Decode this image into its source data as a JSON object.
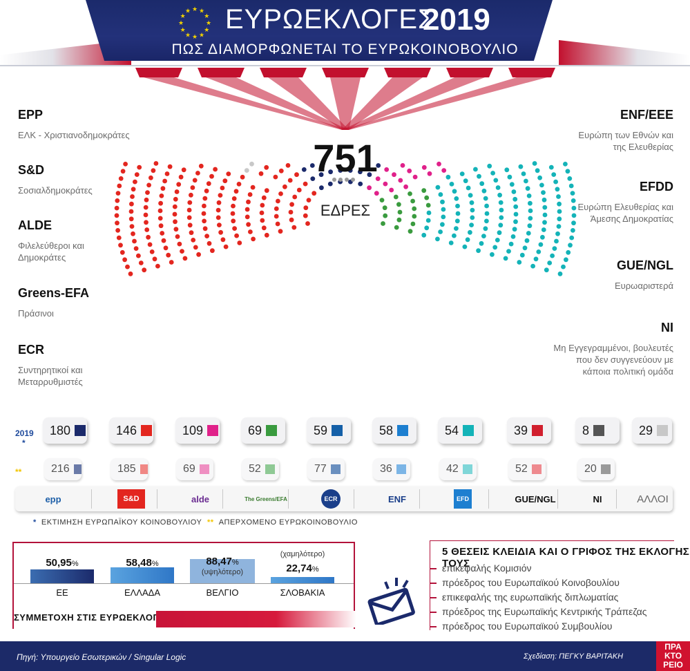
{
  "header": {
    "title": "ΕΥΡΩΕΚΛΟΓΕΣ",
    "year": "2019",
    "subtitle": "ΠΩΣ ΔΙΑΜΟΡΦΩΝΕΤΑΙ ΤΟ ΕΥΡΩΚΟΙΝΟΒΟΥΛΙΟ"
  },
  "chamber": {
    "total": "751",
    "seats_word": "ΕΔΡΕΣ"
  },
  "groups_left": [
    {
      "abbr": "EPP",
      "desc": "ΕΛΚ - Χριστιανοδημοκράτες"
    },
    {
      "abbr": "S&D",
      "desc": "Σοσιαλδημοκράτες"
    },
    {
      "abbr": "ALDE",
      "desc": "Φιλελεύθεροι και Δημοκράτες"
    },
    {
      "abbr": "Greens-EFA",
      "desc": "Πράσινοι"
    },
    {
      "abbr": "ECR",
      "desc": "Συντηρητικοί και Μεταρρυθμιστές"
    }
  ],
  "groups_right": [
    {
      "abbr": "ENF/EEE",
      "desc": "Ευρώπη των Εθνών και της Ελευθερίας"
    },
    {
      "abbr": "EFDD",
      "desc": "Ευρώπη Ελευθερίας και Άμεσης Δημοκρατίας"
    },
    {
      "abbr": "GUE/NGL",
      "desc": "Ευρωαριστερά"
    },
    {
      "abbr": "NI",
      "desc": "Μη Εγγεγραμμένοι, βουλευτές που δεν συγγενεύουν με κάποια πολιτική ομάδα"
    }
  ],
  "counts": {
    "row_2019_label": "2019",
    "row_2019_mark": "*",
    "row_prev_mark": "**",
    "current": [
      {
        "value": "180",
        "color": "#1b2a6b"
      },
      {
        "value": "146",
        "color": "#e3261f"
      },
      {
        "value": "109",
        "color": "#e0218a"
      },
      {
        "value": "69",
        "color": "#3a9b3f"
      },
      {
        "value": "59",
        "color": "#1560a8"
      },
      {
        "value": "58",
        "color": "#1d7fd0"
      },
      {
        "value": "54",
        "color": "#14b3b8"
      },
      {
        "value": "39",
        "color": "#d11f2e"
      },
      {
        "value": "8",
        "color": "#555555"
      },
      {
        "value": "29",
        "color": "#c8c8c8"
      }
    ],
    "previous": [
      {
        "value": "216",
        "color": "#6a7aa8"
      },
      {
        "value": "185",
        "color": "#f08784"
      },
      {
        "value": "69",
        "color": "#ef8fc2"
      },
      {
        "value": "52",
        "color": "#8fc995"
      },
      {
        "value": "77",
        "color": "#6a8fbf"
      },
      {
        "value": "36",
        "color": "#7cb5e6"
      },
      {
        "value": "42",
        "color": "#7fd6d8"
      },
      {
        "value": "52",
        "color": "#ee8a8f"
      },
      {
        "value": "20",
        "color": "#9a9a9a"
      }
    ],
    "logos": [
      {
        "text": "epp",
        "color": "#1d5fa8"
      },
      {
        "text": "S&D",
        "color": "#ffffff"
      },
      {
        "text": "alde",
        "color": "#6a2c91"
      },
      {
        "text": "The Greens/EFA",
        "color": "#3a7b2f"
      },
      {
        "text": "ECR",
        "color": "#1b3f8a"
      },
      {
        "text": "ENF",
        "color": "#1b3f8a"
      },
      {
        "text": "EFD",
        "color": "#1d7fd0"
      },
      {
        "text": "GUE/NGL",
        "color": "#111111"
      },
      {
        "text": "NI",
        "color": "#111111"
      },
      {
        "text": "ΑΛΛΟΙ",
        "color": "#666666"
      }
    ],
    "legend_current": "ΕΚΤΙΜΗΣΗ ΕΥΡΩΠΑΪΚΟΥ ΚΟΙΝΟΒΟΥΛΙΟΥ",
    "legend_previous": "ΑΠΕΡΧΟΜΕΝΟ ΕΥΡΩΚΟΙΝΟΒΟΥΛΙΟ"
  },
  "turnout": {
    "title": "ΣΥΜΜΕΤΟΧΗ ΣΤΙΣ ΕΥΡΩΕΚΛΟΓΕΣ",
    "items": [
      {
        "name": "ΕΕ",
        "value": 50.95,
        "label": "50,95",
        "note": ""
      },
      {
        "name": "ΕΛΛΑΔΑ",
        "value": 58.48,
        "label": "58,48",
        "note": ""
      },
      {
        "name": "ΒΕΛΓΙΟ",
        "value": 88.47,
        "label": "88,47",
        "note": "(υψηλότερο)"
      },
      {
        "name": "ΣΛΟΒΑΚΙΑ",
        "value": 22.74,
        "label": "22,74",
        "note": "(χαμηλότερο)"
      }
    ],
    "pct_sign": "%"
  },
  "key_positions": {
    "title": "5 ΘΕΣΕΙΣ ΚΛΕΙΔΙΑ ΚΑΙ Ο ΓΡΙΦΟΣ ΤΗΣ ΕΚΛΟΓΗΣ ΤΟΥΣ",
    "items": [
      "επικεφαλής Κομισιόν",
      "πρόεδρος του Ευρωπαϊκού Κοινοβουλίου",
      "επικεφαλής της ευρωπαϊκής διπλωματίας",
      "πρόεδρος της Ευρωπαϊκής Κεντρικής Τράπεζας",
      "πρόεδρος του Ευρωπαϊκού Συμβουλίου"
    ]
  },
  "footer": {
    "source": "Πηγή: Υπουργείο Εσωτερικών / Singular Logic",
    "design": "Σχεδίαση: ΠΕΓΚΥ ΒΑΡΙΤΑΚΗ",
    "brand": "ΠΡΑ ΚΤΟ ΡΕΙΟ"
  }
}
